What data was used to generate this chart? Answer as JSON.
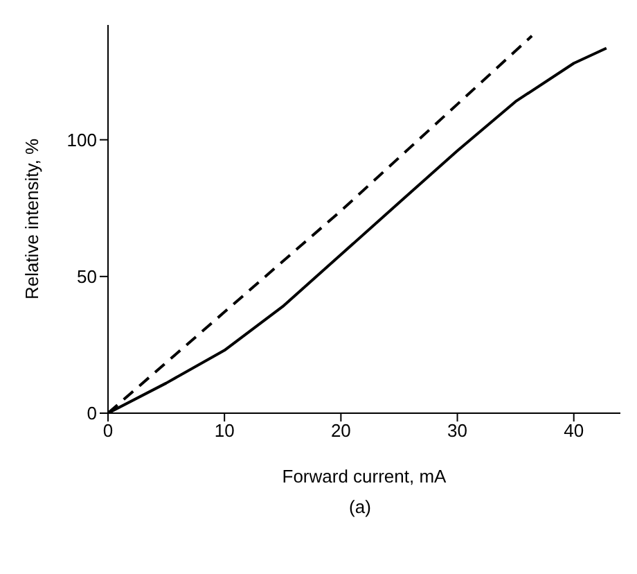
{
  "chart_data": {
    "type": "line",
    "xlabel": "Forward current, mA",
    "ylabel": "Relative intensity, %",
    "annotations": [
      "(a)"
    ],
    "xlim": [
      0,
      44
    ],
    "ylim": [
      0,
      142
    ],
    "xticks": [
      0,
      10,
      20,
      30,
      40
    ],
    "yticks": [
      0,
      50,
      100
    ],
    "marker": "none",
    "series": [
      {
        "color": "#000000",
        "line_style": "dashed",
        "x": [
          0,
          10,
          20,
          30,
          36.4
        ],
        "values": [
          0,
          37,
          74,
          113,
          138
        ]
      },
      {
        "color": "#000000",
        "line_style": "solid",
        "x": [
          0,
          5,
          10,
          15,
          20,
          25,
          30,
          35,
          40,
          42.8
        ],
        "values": [
          0,
          11,
          23,
          39,
          58,
          77,
          96,
          114,
          128,
          133.5
        ]
      }
    ]
  }
}
